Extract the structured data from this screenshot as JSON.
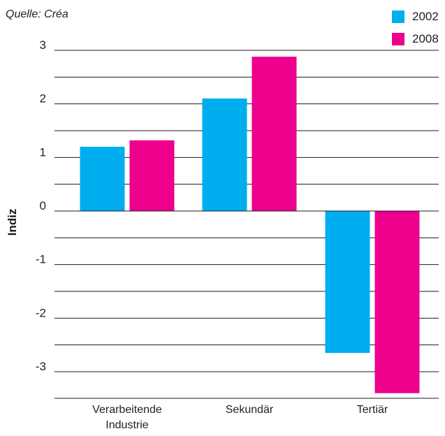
{
  "source": "Quelle: Créa",
  "legend": [
    {
      "label": "2002",
      "color": "#00aeef"
    },
    {
      "label": "2008",
      "color": "#ec008c"
    }
  ],
  "chart_data": {
    "type": "bar",
    "categories": [
      "Verarbeitende Industrie",
      "Sekundär",
      "Tertiär"
    ],
    "category_lines": [
      [
        "Verarbeitende",
        "Industrie"
      ],
      [
        "Sekundär"
      ],
      [
        "Tertiär"
      ]
    ],
    "series": [
      {
        "name": "2002",
        "color": "#00aeef",
        "values": [
          1.2,
          2.1,
          -2.65
        ]
      },
      {
        "name": "2008",
        "color": "#ec008c",
        "values": [
          1.32,
          2.88,
          -3.4
        ]
      }
    ],
    "ylabel": "Indiz",
    "ylim": [
      -3.5,
      3
    ],
    "yticks": [
      3,
      2,
      1,
      0,
      -1,
      -2,
      -3
    ],
    "grid": true,
    "legend_position": "top-right"
  }
}
